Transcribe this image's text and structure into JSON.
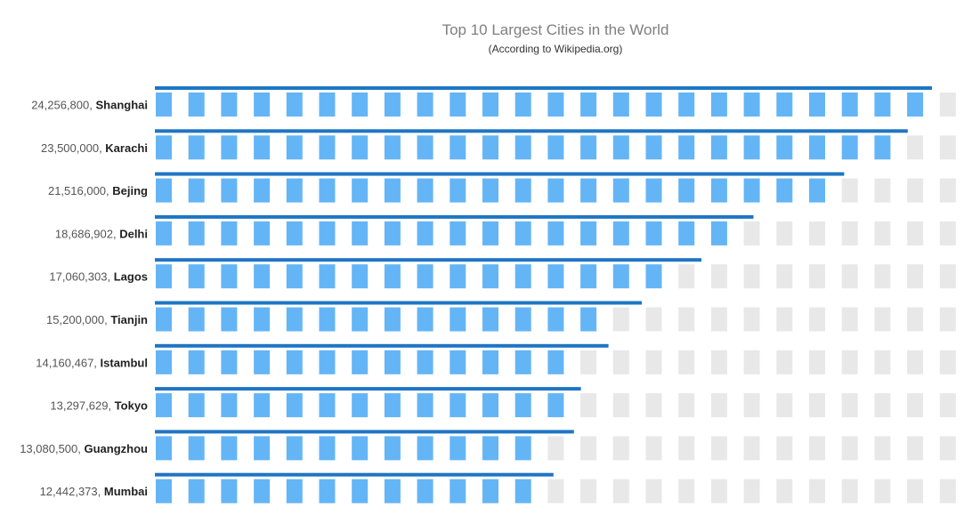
{
  "chart_data": {
    "type": "bar",
    "title": "Top 10 Largest Cities in the World",
    "subtitle": "(According to Wikipedia.org)",
    "categories": [
      "Shanghai",
      "Karachi",
      "Bejing",
      "Delhi",
      "Lagos",
      "Tianjin",
      "Istambul",
      "Tokyo",
      "Guangzhou",
      "Mumbai"
    ],
    "value_labels": [
      "24,256,800",
      "23,500,000",
      "21,516,000",
      "18,686,902",
      "17,060,303",
      "15,200,000",
      "14,160,467",
      "13,297,629",
      "13,080,500",
      "12,442,373"
    ],
    "values": [
      24256800,
      23500000,
      21516000,
      18686902,
      17060303,
      15200000,
      14160467,
      13297629,
      13080500,
      12442373
    ],
    "max_units": 25,
    "filled_units": [
      24,
      23,
      21,
      18,
      16,
      14,
      13,
      13,
      12,
      12
    ],
    "xlim": [
      0,
      24256800
    ],
    "grid": false,
    "legend": "none",
    "colors": {
      "line": "#1f75c4",
      "unit_filled": "#64b5f6",
      "unit_empty": "#e8e8e8",
      "title": "#7f7f7f",
      "subtitle": "#333333"
    }
  }
}
